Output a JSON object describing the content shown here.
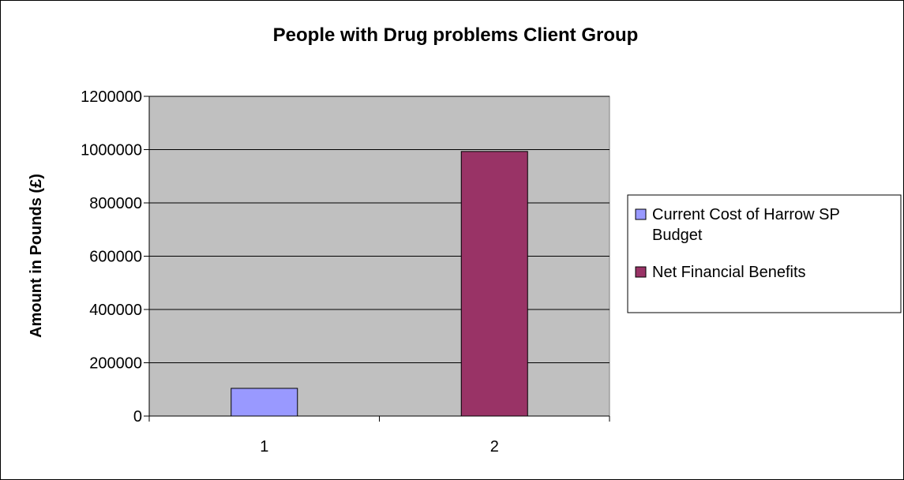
{
  "chart_data": {
    "type": "bar",
    "title": "People with Drug problems Client Group",
    "xlabel": "",
    "ylabel": "Amount in Pounds (£)",
    "categories": [
      "1",
      "2"
    ],
    "series": [
      {
        "name": "Current Cost of Harrow SP Budget",
        "values": [
          104000,
          null
        ],
        "color": "#9999ff"
      },
      {
        "name": "Net Financial Benefits",
        "values": [
          null,
          993000
        ],
        "color": "#993366"
      }
    ],
    "ylim": [
      0,
      1200000
    ],
    "yticks": [
      "0",
      "200000",
      "400000",
      "600000",
      "800000",
      "1000000",
      "1200000"
    ],
    "grid": true,
    "plot_background": "#c0c0c0",
    "legend_position": "right",
    "legend_lines": [
      [
        "Current Cost of Harrow SP",
        "Budget"
      ],
      [
        "Net Financial Benefits"
      ]
    ]
  }
}
